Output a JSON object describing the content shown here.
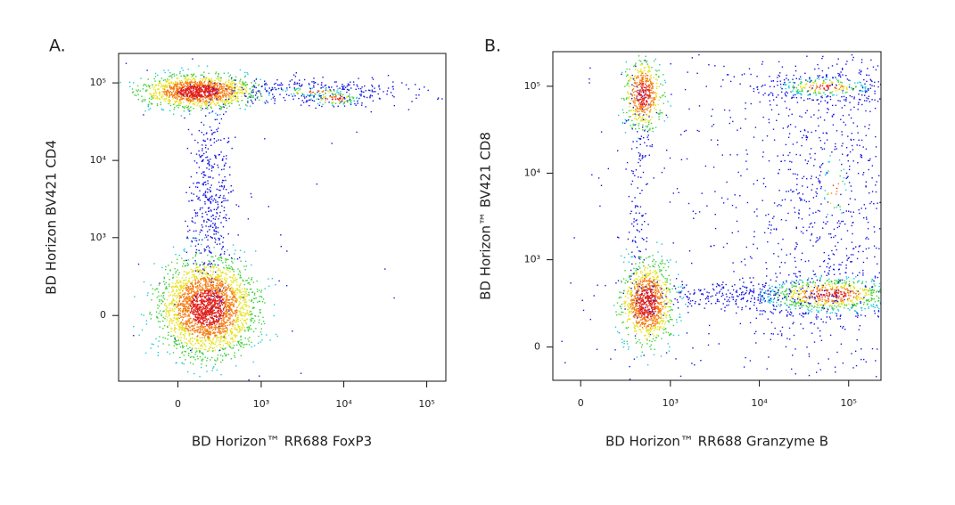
{
  "chart_data": [
    {
      "type": "scatter",
      "panel_label": "A.",
      "x_label": "BD Horizon™ RR688 FoxP3",
      "y_label": "BD Horizon BV421 CD4",
      "xscale": "biexponential",
      "yscale": "biexponential",
      "xlim": [
        -500,
        170000
      ],
      "ylim": [
        -690,
        240000
      ],
      "xticks": [
        0,
        {
          "value": 1000,
          "label": "10³"
        },
        {
          "value": 10000,
          "label": "10⁴"
        },
        {
          "value": 100000,
          "label": "10⁵"
        }
      ],
      "yticks": [
        0,
        {
          "value": 1000,
          "label": "10³"
        },
        {
          "value": 10000,
          "label": "10⁴"
        },
        {
          "value": 100000,
          "label": "10⁵"
        }
      ]
    },
    {
      "type": "scatter",
      "panel_label": "B.",
      "x_label": "BD Horizon™ RR688 Granzyme B",
      "y_label": "BD Horizon™ BV421 CD8",
      "xscale": "biexponential",
      "yscale": "biexponential",
      "xlim": [
        -156,
        230000
      ],
      "ylim": [
        -200,
        250000
      ],
      "xticks": [
        0,
        {
          "value": 1000,
          "label": "10³"
        },
        {
          "value": 10000,
          "label": "10⁴"
        },
        {
          "value": 100000,
          "label": "10⁵"
        }
      ],
      "yticks": [
        0,
        {
          "value": 1000,
          "label": "10³"
        },
        {
          "value": 10000,
          "label": "10⁴"
        },
        {
          "value": 100000,
          "label": "10⁵"
        }
      ]
    }
  ]
}
